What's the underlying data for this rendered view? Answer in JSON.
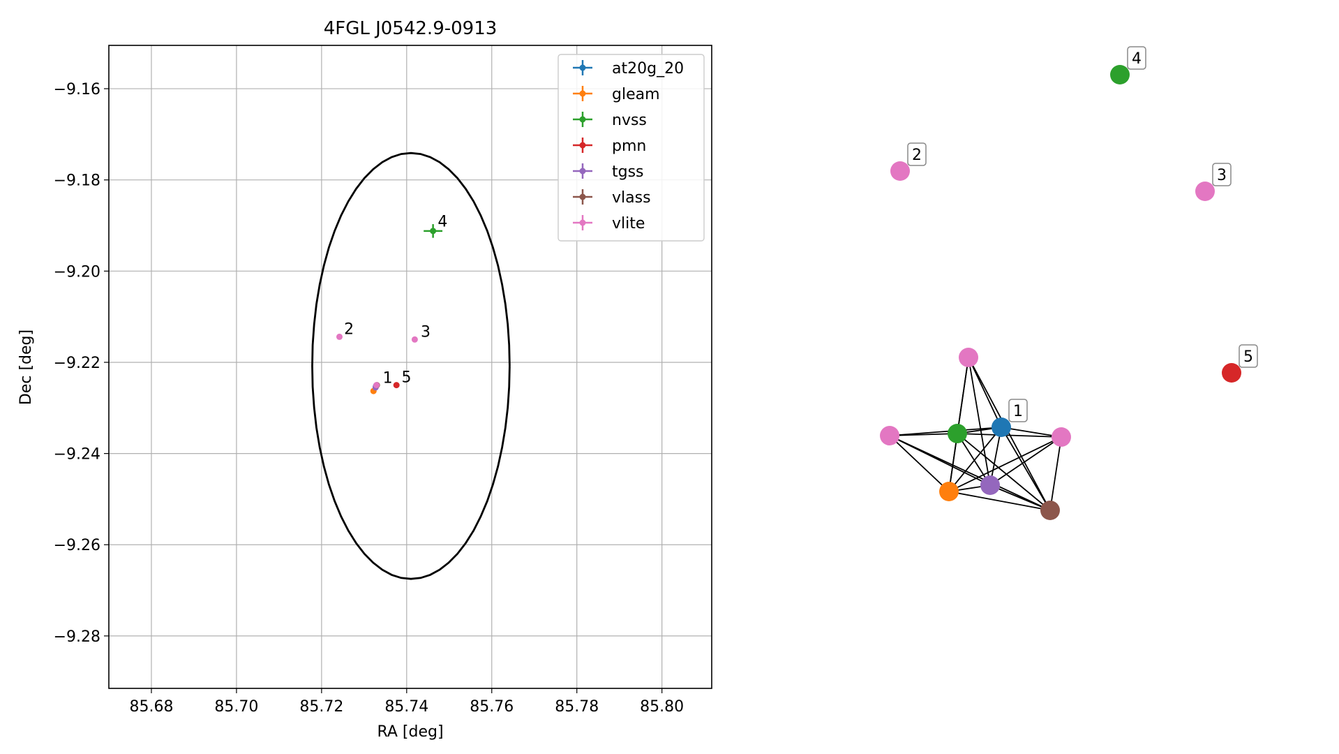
{
  "chart_data": [
    {
      "type": "scatter",
      "title": "4FGL J0542.9-0913",
      "xlabel": "RA [deg]",
      "ylabel": "Dec [deg]",
      "xlim": [
        85.67,
        85.8117
      ],
      "ylim": [
        -9.2915,
        -9.1505
      ],
      "xticks": [
        85.68,
        85.7,
        85.72,
        85.74,
        85.76,
        85.78,
        85.8
      ],
      "yticks": [
        -9.16,
        -9.18,
        -9.2,
        -9.22,
        -9.24,
        -9.26,
        -9.28
      ],
      "xtick_labels": [
        "85.68",
        "85.70",
        "85.72",
        "85.74",
        "85.76",
        "85.78",
        "85.80"
      ],
      "ytick_labels": [
        "−9.16",
        "−9.18",
        "−9.20",
        "−9.22",
        "−9.24",
        "−9.26",
        "−9.28"
      ],
      "grid": true,
      "legend_position": "top-right",
      "ellipse": {
        "center": [
          85.741,
          -9.2208
        ],
        "ra_radius": 0.0232,
        "dec_radius": 0.0467,
        "color": "#000000"
      },
      "series": [
        {
          "name": "at20g_20",
          "color": "#1f77b4",
          "points": [
            {
              "x": 85.7328,
              "y": -9.2252,
              "xerr": 0.0002,
              "yerr": 0.0002
            }
          ]
        },
        {
          "name": "gleam",
          "color": "#ff7f0e",
          "points": [
            {
              "x": 85.7322,
              "y": -9.2263,
              "xerr": 0.0004,
              "yerr": 0.0006
            }
          ]
        },
        {
          "name": "nvss",
          "color": "#2ca02c",
          "points": [
            {
              "x": 85.7462,
              "y": -9.1912,
              "xerr": 0.0022,
              "yerr": 0.0015
            }
          ]
        },
        {
          "name": "pmn",
          "color": "#d62728",
          "points": [
            {
              "x": 85.7376,
              "y": -9.225,
              "xerr": 0.0002,
              "yerr": 0.0002
            }
          ]
        },
        {
          "name": "tgss",
          "color": "#9467bd",
          "points": [
            {
              "x": 85.7327,
              "y": -9.2255,
              "xerr": 0.0002,
              "yerr": 0.0002
            }
          ]
        },
        {
          "name": "vlass",
          "color": "#8c564b",
          "points": [
            {
              "x": 85.733,
              "y": -9.225,
              "xerr": 0.0001,
              "yerr": 0.0001
            }
          ]
        },
        {
          "name": "vlite",
          "color": "#e377c2",
          "points": [
            {
              "x": 85.7329,
              "y": -9.225,
              "xerr": 0.0003,
              "yerr": 0.0003
            },
            {
              "x": 85.7242,
              "y": -9.2144,
              "xerr": 0.0002,
              "yerr": 0.0002
            },
            {
              "x": 85.7419,
              "y": -9.215,
              "xerr": 0.0002,
              "yerr": 0.0002
            }
          ]
        }
      ],
      "annotations": [
        {
          "text": "1",
          "x": 85.7344,
          "y": -9.2245
        },
        {
          "text": "2",
          "x": 85.7253,
          "y": -9.2138
        },
        {
          "text": "3",
          "x": 85.7433,
          "y": -9.2144
        },
        {
          "text": "4",
          "x": 85.7473,
          "y": -9.1902
        },
        {
          "text": "5",
          "x": 85.7388,
          "y": -9.2244
        }
      ]
    },
    {
      "type": "graph",
      "nodes": [
        {
          "id": "at20g",
          "color": "#1f77b4",
          "label": "1"
        },
        {
          "id": "nvss_a",
          "color": "#2ca02c",
          "label": ""
        },
        {
          "id": "vlite_top",
          "color": "#e377c2",
          "label": ""
        },
        {
          "id": "vlite_left",
          "color": "#e377c2",
          "label": ""
        },
        {
          "id": "vlite_right",
          "color": "#e377c2",
          "label": ""
        },
        {
          "id": "gleam",
          "color": "#ff7f0e",
          "label": ""
        },
        {
          "id": "tgss",
          "color": "#9467bd",
          "label": ""
        },
        {
          "id": "vlass",
          "color": "#8c564b",
          "label": ""
        },
        {
          "id": "vlite_2",
          "color": "#e377c2",
          "label": "2"
        },
        {
          "id": "vlite_3",
          "color": "#e377c2",
          "label": "3"
        },
        {
          "id": "nvss_4",
          "color": "#2ca02c",
          "label": "4"
        },
        {
          "id": "pmn_5",
          "color": "#d62728",
          "label": "5"
        }
      ],
      "edges": [
        [
          "vlite_top",
          "at20g"
        ],
        [
          "vlite_top",
          "nvss_a"
        ],
        [
          "vlite_top",
          "gleam"
        ],
        [
          "vlite_top",
          "tgss"
        ],
        [
          "vlite_top",
          "vlass"
        ],
        [
          "vlite_left",
          "at20g"
        ],
        [
          "vlite_left",
          "nvss_a"
        ],
        [
          "vlite_left",
          "gleam"
        ],
        [
          "vlite_left",
          "tgss"
        ],
        [
          "vlite_left",
          "vlass"
        ],
        [
          "vlite_right",
          "at20g"
        ],
        [
          "vlite_right",
          "nvss_a"
        ],
        [
          "vlite_right",
          "gleam"
        ],
        [
          "vlite_right",
          "tgss"
        ],
        [
          "vlite_right",
          "vlass"
        ],
        [
          "at20g",
          "nvss_a"
        ],
        [
          "at20g",
          "gleam"
        ],
        [
          "at20g",
          "tgss"
        ],
        [
          "at20g",
          "vlass"
        ],
        [
          "nvss_a",
          "gleam"
        ],
        [
          "nvss_a",
          "tgss"
        ],
        [
          "nvss_a",
          "vlass"
        ],
        [
          "gleam",
          "tgss"
        ],
        [
          "gleam",
          "vlass"
        ],
        [
          "tgss",
          "vlass"
        ]
      ]
    }
  ]
}
